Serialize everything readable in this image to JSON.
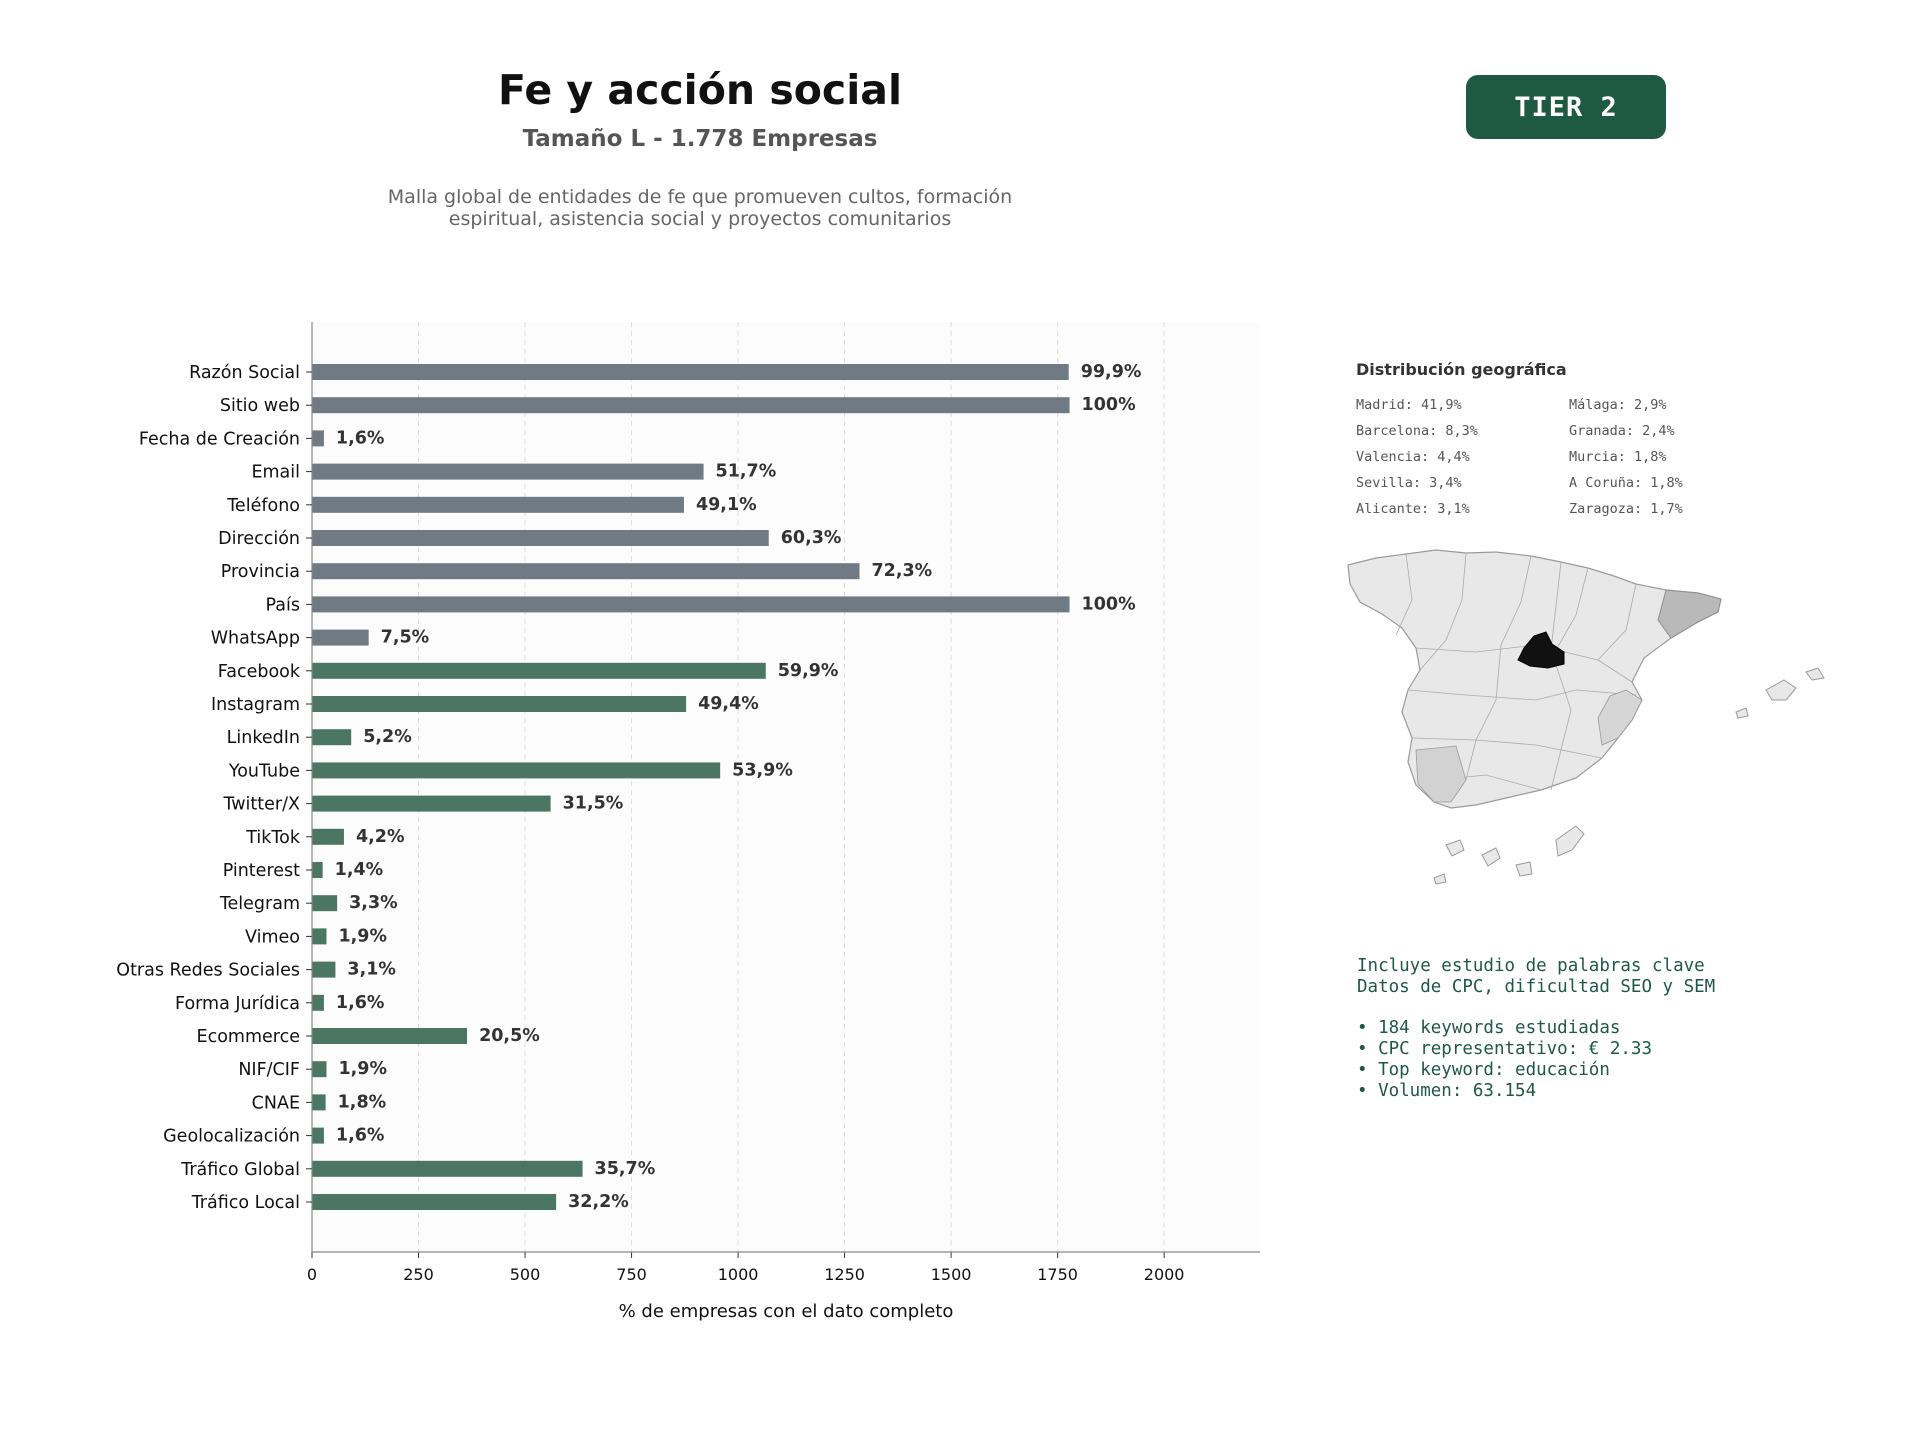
{
  "header": {
    "title": "Fe y acción social",
    "subtitle": "Tamaño L - 1.778 Empresas",
    "description_line1": "Malla global de entidades de fe que promueven cultos, formación",
    "description_line2": "espiritual, asistencia social y proyectos comunitarios",
    "tier_badge": "TIER 2"
  },
  "colors": {
    "contact_bar": "#6f7a84",
    "social_bar": "#4a7663",
    "badge": "#1e5944",
    "text_dark": "#333333",
    "grid": "#dddddd"
  },
  "chart_data": {
    "type": "bar",
    "orientation": "horizontal",
    "xlabel": "% de empresas con el dato completo",
    "xlim": [
      0,
      2225
    ],
    "xticks": [
      0,
      250,
      500,
      750,
      1000,
      1250,
      1500,
      1750,
      2000
    ],
    "grid": "x-dashed",
    "categories": [
      "Razón Social",
      "Sitio web",
      "Fecha de Creación",
      "Email",
      "Teléfono",
      "Dirección",
      "Provincia",
      "País",
      "WhatsApp",
      "Facebook",
      "Instagram",
      "LinkedIn",
      "YouTube",
      "Twitter/X",
      "TikTok",
      "Pinterest",
      "Telegram",
      "Vimeo",
      "Otras Redes Sociales",
      "Forma Jurídica",
      "Ecommerce",
      "NIF/CIF",
      "CNAE",
      "Geolocalización",
      "Tráfico Global",
      "Tráfico Local"
    ],
    "values": [
      1776,
      1778,
      28,
      919,
      873,
      1072,
      1285,
      1778,
      133,
      1065,
      878,
      92,
      958,
      560,
      75,
      25,
      59,
      34,
      55,
      28,
      364,
      34,
      32,
      28,
      635,
      573
    ],
    "labels": [
      "99,9%",
      "100%",
      "1,6%",
      "51,7%",
      "49,1%",
      "60,3%",
      "72,3%",
      "100%",
      "7,5%",
      "59,9%",
      "49,4%",
      "5,2%",
      "53,9%",
      "31,5%",
      "4,2%",
      "1,4%",
      "3,3%",
      "1,9%",
      "3,1%",
      "1,6%",
      "20,5%",
      "1,9%",
      "1,8%",
      "1,6%",
      "35,7%",
      "32,2%"
    ],
    "groups": [
      "contact",
      "contact",
      "contact",
      "contact",
      "contact",
      "contact",
      "contact",
      "contact",
      "contact",
      "social",
      "social",
      "social",
      "social",
      "social",
      "social",
      "social",
      "social",
      "social",
      "social",
      "social",
      "social",
      "social",
      "social",
      "social",
      "social",
      "social"
    ]
  },
  "geo": {
    "title": "Distribución geográfica",
    "items": [
      "Madrid: 41,9%",
      "Málaga: 2,9%",
      "Barcelona: 8,3%",
      "Granada: 2,4%",
      "Valencia: 4,4%",
      "Murcia: 1,8%",
      "Sevilla: 3,4%",
      "A Coruña: 1,8%",
      "Alicante: 3,1%",
      "Zaragoza: 1,7%"
    ]
  },
  "keywords": {
    "line1": "Incluye estudio de palabras clave",
    "line2": "Datos de CPC, dificultad SEO y SEM",
    "bullets": [
      "• 184 keywords estudiadas",
      "• CPC representativo: € 2.33",
      "• Top keyword: educación",
      "• Volumen: 63.154"
    ]
  }
}
